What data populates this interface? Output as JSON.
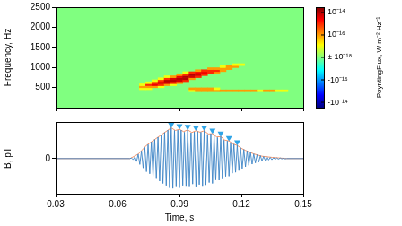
{
  "chart_data": [
    {
      "type": "heatmap",
      "y_label": "Frequency, Hz",
      "xlim": [
        0.03,
        0.15
      ],
      "xticks": [
        0.03,
        0.06,
        0.09,
        0.12,
        0.15
      ],
      "ylim": [
        0,
        2500
      ],
      "yticks": [
        500,
        1000,
        1500,
        2000,
        2500
      ],
      "tick_labels": "y",
      "bin_width": 0.003,
      "bin_height": 50,
      "background_value": 0,
      "cells": [
        [
          0.072,
          475,
          1e-17
        ],
        [
          0.072,
          525,
          1e-16
        ],
        [
          0.072,
          575,
          1e-17
        ],
        [
          0.075,
          475,
          1e-17
        ],
        [
          0.075,
          525,
          1e-16
        ],
        [
          0.075,
          575,
          1e-15
        ],
        [
          0.075,
          625,
          1e-17
        ],
        [
          0.078,
          525,
          1e-16
        ],
        [
          0.078,
          575,
          3e-15
        ],
        [
          0.078,
          625,
          1e-15
        ],
        [
          0.078,
          675,
          1e-17
        ],
        [
          0.081,
          525,
          1e-17
        ],
        [
          0.081,
          575,
          1e-15
        ],
        [
          0.081,
          625,
          5e-15
        ],
        [
          0.081,
          675,
          1e-15
        ],
        [
          0.081,
          725,
          1e-17
        ],
        [
          0.084,
          575,
          1e-16
        ],
        [
          0.084,
          625,
          5e-15
        ],
        [
          0.084,
          675,
          1e-14
        ],
        [
          0.084,
          725,
          1e-15
        ],
        [
          0.084,
          775,
          1e-17
        ],
        [
          0.087,
          575,
          1e-17
        ],
        [
          0.087,
          625,
          1e-15
        ],
        [
          0.087,
          675,
          1e-14
        ],
        [
          0.087,
          725,
          5e-15
        ],
        [
          0.087,
          775,
          1e-16
        ],
        [
          0.09,
          625,
          1e-16
        ],
        [
          0.09,
          675,
          5e-15
        ],
        [
          0.09,
          725,
          1e-14
        ],
        [
          0.09,
          775,
          3e-15
        ],
        [
          0.09,
          825,
          1e-16
        ],
        [
          0.093,
          675,
          1e-15
        ],
        [
          0.093,
          725,
          1e-14
        ],
        [
          0.093,
          775,
          1e-14
        ],
        [
          0.093,
          825,
          1e-15
        ],
        [
          0.093,
          875,
          1e-17
        ],
        [
          0.096,
          425,
          1e-17
        ],
        [
          0.096,
          475,
          1e-16
        ],
        [
          0.096,
          725,
          1e-16
        ],
        [
          0.096,
          775,
          5e-15
        ],
        [
          0.096,
          825,
          1e-14
        ],
        [
          0.096,
          875,
          1e-15
        ],
        [
          0.099,
          425,
          1e-16
        ],
        [
          0.099,
          475,
          1e-16
        ],
        [
          0.099,
          775,
          1e-15
        ],
        [
          0.099,
          825,
          5e-15
        ],
        [
          0.099,
          875,
          3e-15
        ],
        [
          0.099,
          925,
          1e-16
        ],
        [
          0.102,
          425,
          1e-16
        ],
        [
          0.102,
          475,
          1e-16
        ],
        [
          0.102,
          825,
          1e-15
        ],
        [
          0.102,
          875,
          3e-15
        ],
        [
          0.102,
          925,
          1e-15
        ],
        [
          0.105,
          425,
          1e-16
        ],
        [
          0.105,
          475,
          1e-16
        ],
        [
          0.105,
          875,
          1e-15
        ],
        [
          0.105,
          925,
          1e-15
        ],
        [
          0.105,
          975,
          1e-16
        ],
        [
          0.108,
          425,
          1e-16
        ],
        [
          0.108,
          475,
          1e-17
        ],
        [
          0.108,
          875,
          1e-16
        ],
        [
          0.108,
          925,
          1e-15
        ],
        [
          0.108,
          975,
          1e-16
        ],
        [
          0.111,
          425,
          1e-16
        ],
        [
          0.111,
          925,
          1e-16
        ],
        [
          0.111,
          975,
          1e-16
        ],
        [
          0.111,
          1025,
          1e-17
        ],
        [
          0.114,
          425,
          1e-16
        ],
        [
          0.114,
          975,
          1e-16
        ],
        [
          0.114,
          1025,
          1e-16
        ],
        [
          0.117,
          425,
          1e-16
        ],
        [
          0.117,
          1025,
          1e-16
        ],
        [
          0.117,
          1075,
          1e-17
        ],
        [
          0.12,
          425,
          1e-16
        ],
        [
          0.12,
          1075,
          1e-17
        ],
        [
          0.123,
          425,
          1e-16
        ],
        [
          0.126,
          425,
          1e-16
        ],
        [
          0.129,
          425,
          1e-17
        ],
        [
          0.132,
          425,
          1e-16
        ],
        [
          0.135,
          425,
          1e-16
        ],
        [
          0.138,
          425,
          1e-17
        ],
        [
          0.141,
          425,
          1e-17
        ]
      ],
      "colorbar": {
        "label": "PoyntingFlux, W m⁻² Hz⁻¹",
        "range": [
          -3e-14,
          3e-14
        ],
        "scale": "symlog",
        "linthresh": 1e-18,
        "ticks": [
          {
            "value": 1e-14,
            "label": "10⁻¹⁴"
          },
          {
            "value": 1e-16,
            "label": "10⁻¹⁶"
          },
          {
            "value": 0,
            "label": "± 10⁻¹⁸"
          },
          {
            "value": -1e-16,
            "label": "-10⁻¹⁶"
          },
          {
            "value": -1e-14,
            "label": "-10⁻¹⁴"
          }
        ]
      }
    },
    {
      "type": "line",
      "x_label": "Time, s",
      "y_label": "B, pT",
      "xlim": [
        0.03,
        0.15
      ],
      "xticks": [
        0.03,
        0.06,
        0.09,
        0.12,
        0.15
      ],
      "ylim": [
        -1.2,
        1.25
      ],
      "yticks": [
        0
      ],
      "series": [
        {
          "color": "#3d85c6",
          "line_style": "solid",
          "points": [
            [
              0.03,
              0
            ],
            [
              0.066,
              0
            ],
            [
              0.0668,
              0.02
            ],
            [
              0.0676,
              -0.04
            ],
            [
              0.0684,
              0.06
            ],
            [
              0.0692,
              -0.1
            ],
            [
              0.07,
              0.15
            ],
            [
              0.0708,
              -0.2
            ],
            [
              0.0716,
              0.26
            ],
            [
              0.0724,
              -0.32
            ],
            [
              0.0732,
              0.38
            ],
            [
              0.074,
              -0.45
            ],
            [
              0.0748,
              0.48
            ],
            [
              0.0756,
              -0.52
            ],
            [
              0.0764,
              0.57
            ],
            [
              0.0772,
              -0.6
            ],
            [
              0.078,
              0.65
            ],
            [
              0.0788,
              -0.69
            ],
            [
              0.0796,
              0.73
            ],
            [
              0.0804,
              -0.77
            ],
            [
              0.0812,
              0.8
            ],
            [
              0.082,
              -0.85
            ],
            [
              0.0828,
              0.89
            ],
            [
              0.0836,
              -0.92
            ],
            [
              0.0844,
              0.97
            ],
            [
              0.0852,
              -1.0
            ],
            [
              0.086,
              1.05
            ],
            [
              0.0868,
              -1.02
            ],
            [
              0.0876,
              0.96
            ],
            [
              0.0884,
              -0.94
            ],
            [
              0.0892,
              0.97
            ],
            [
              0.09,
              -1.0
            ],
            [
              0.0908,
              0.97
            ],
            [
              0.0916,
              -0.92
            ],
            [
              0.0924,
              0.9
            ],
            [
              0.0932,
              -0.93
            ],
            [
              0.094,
              0.98
            ],
            [
              0.0948,
              -0.94
            ],
            [
              0.0956,
              0.88
            ],
            [
              0.0964,
              -0.87
            ],
            [
              0.0972,
              0.91
            ],
            [
              0.098,
              -0.95
            ],
            [
              0.0988,
              0.92
            ],
            [
              0.0996,
              -0.89
            ],
            [
              0.1004,
              0.9
            ],
            [
              0.1012,
              -0.93
            ],
            [
              0.102,
              0.95
            ],
            [
              0.1028,
              -0.9
            ],
            [
              0.1036,
              0.83
            ],
            [
              0.1044,
              -0.82
            ],
            [
              0.1052,
              0.85
            ],
            [
              0.106,
              -0.85
            ],
            [
              0.1068,
              0.8
            ],
            [
              0.1076,
              -0.73
            ],
            [
              0.1084,
              0.72
            ],
            [
              0.1092,
              -0.74
            ],
            [
              0.11,
              0.75
            ],
            [
              0.1108,
              -0.7
            ],
            [
              0.1116,
              0.63
            ],
            [
              0.1124,
              -0.61
            ],
            [
              0.1132,
              0.6
            ],
            [
              0.114,
              -0.6
            ],
            [
              0.1148,
              0.55
            ],
            [
              0.1156,
              -0.5
            ],
            [
              0.1164,
              0.49
            ],
            [
              0.1172,
              -0.47
            ],
            [
              0.118,
              0.45
            ],
            [
              0.1188,
              -0.41
            ],
            [
              0.1196,
              0.37
            ],
            [
              0.1204,
              -0.34
            ],
            [
              0.1212,
              0.31
            ],
            [
              0.122,
              -0.28
            ],
            [
              0.1228,
              0.26
            ],
            [
              0.1236,
              -0.23
            ],
            [
              0.1244,
              0.21
            ],
            [
              0.1252,
              -0.19
            ],
            [
              0.126,
              0.16
            ],
            [
              0.1268,
              -0.15
            ],
            [
              0.1276,
              0.13
            ],
            [
              0.1284,
              -0.12
            ],
            [
              0.1292,
              0.1
            ],
            [
              0.13,
              -0.08
            ],
            [
              0.1308,
              0.07
            ],
            [
              0.1316,
              -0.06
            ],
            [
              0.1324,
              0.06
            ],
            [
              0.1332,
              -0.05
            ],
            [
              0.134,
              0.04
            ],
            [
              0.1348,
              -0.04
            ],
            [
              0.1356,
              0.03
            ],
            [
              0.1364,
              -0.03
            ],
            [
              0.1372,
              0.02
            ],
            [
              0.138,
              -0.02
            ],
            [
              0.1388,
              0.02
            ],
            [
              0.1396,
              -0.01
            ],
            [
              0.1404,
              0.01
            ],
            [
              0.1412,
              -0.01
            ],
            [
              0.142,
              0
            ],
            [
              0.15,
              0
            ]
          ]
        },
        {
          "color": "#f08a5d",
          "line_style": "solid",
          "points": [
            [
              0.03,
              0
            ],
            [
              0.066,
              0
            ],
            [
              0.07,
              0.15
            ],
            [
              0.074,
              0.45
            ],
            [
              0.078,
              0.65
            ],
            [
              0.082,
              0.85
            ],
            [
              0.086,
              1.05
            ],
            [
              0.088,
              0.96
            ],
            [
              0.09,
              1.0
            ],
            [
              0.092,
              0.92
            ],
            [
              0.094,
              0.98
            ],
            [
              0.096,
              0.89
            ],
            [
              0.098,
              0.95
            ],
            [
              0.1,
              0.9
            ],
            [
              0.102,
              0.95
            ],
            [
              0.104,
              0.84
            ],
            [
              0.106,
              0.85
            ],
            [
              0.108,
              0.74
            ],
            [
              0.11,
              0.75
            ],
            [
              0.112,
              0.63
            ],
            [
              0.114,
              0.6
            ],
            [
              0.116,
              0.5
            ],
            [
              0.118,
              0.45
            ],
            [
              0.12,
              0.35
            ],
            [
              0.122,
              0.28
            ],
            [
              0.124,
              0.22
            ],
            [
              0.126,
              0.16
            ],
            [
              0.13,
              0.08
            ],
            [
              0.135,
              0.04
            ],
            [
              0.142,
              0
            ],
            [
              0.15,
              0
            ]
          ]
        },
        {
          "color": "#2fa4e7",
          "marker": "triangle_down",
          "line_style": "none",
          "points": [
            [
              0.086,
              1.16
            ],
            [
              0.09,
              1.11
            ],
            [
              0.094,
              1.09
            ],
            [
              0.098,
              1.06
            ],
            [
              0.102,
              1.06
            ],
            [
              0.106,
              0.96
            ],
            [
              0.11,
              0.86
            ],
            [
              0.114,
              0.71
            ],
            [
              0.118,
              0.56
            ]
          ]
        }
      ]
    }
  ]
}
